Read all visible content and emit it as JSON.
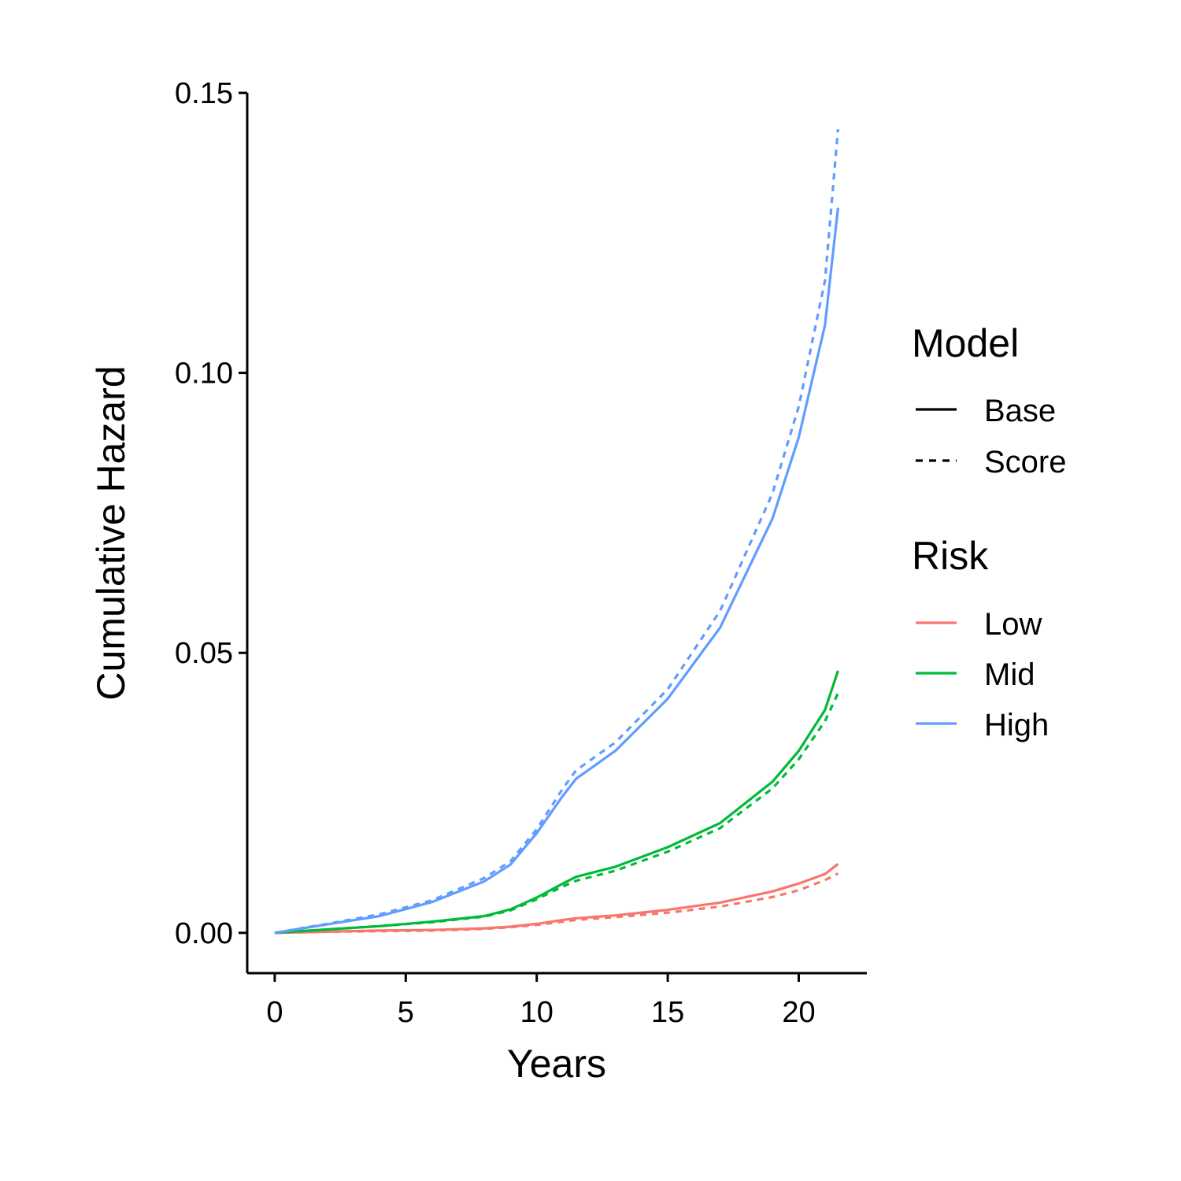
{
  "chart_data": {
    "type": "line",
    "title": "",
    "xlabel": "Years",
    "ylabel": "Cumulative Hazard",
    "xlim": [
      -1.05,
      22.6
    ],
    "ylim": [
      -0.0072,
      0.15
    ],
    "x_ticks": [
      0,
      5,
      10,
      15,
      20
    ],
    "x_tick_labels": [
      "0",
      "5",
      "10",
      "15",
      "20"
    ],
    "y_ticks": [
      0,
      0.05,
      0.1,
      0.15
    ],
    "y_tick_labels": [
      "0.00",
      "0.05",
      "0.10",
      "0.15"
    ],
    "grid": false,
    "legend_position": "right",
    "legends": [
      {
        "title": "Model",
        "entries": [
          {
            "label": "Base",
            "linetype": "solid",
            "color": "#000000"
          },
          {
            "label": "Score",
            "linetype": "dashed",
            "color": "#000000"
          }
        ]
      },
      {
        "title": "Risk",
        "entries": [
          {
            "label": "Low",
            "color": "#F8766D"
          },
          {
            "label": "Mid",
            "color": "#00BA38"
          },
          {
            "label": "High",
            "color": "#619CFF"
          }
        ]
      }
    ],
    "x": [
      0,
      2,
      4,
      6,
      8,
      9,
      10,
      11,
      11.5,
      13,
      15,
      17,
      19,
      20,
      21,
      21.5
    ],
    "series": [
      {
        "risk": "Low",
        "model": "Base",
        "color": "#F8766D",
        "linetype": "solid",
        "values": [
          0,
          0.0002,
          0.0004,
          0.0005,
          0.0008,
          0.0011,
          0.0016,
          0.0023,
          0.0026,
          0.0031,
          0.0041,
          0.0054,
          0.0074,
          0.0088,
          0.0105,
          0.0123
        ]
      },
      {
        "risk": "Low",
        "model": "Score",
        "color": "#F8766D",
        "linetype": "dashed",
        "values": [
          0,
          0.0002,
          0.0003,
          0.0004,
          0.0007,
          0.001,
          0.0014,
          0.002,
          0.0023,
          0.0028,
          0.0036,
          0.0047,
          0.0064,
          0.0076,
          0.0094,
          0.0106
        ]
      },
      {
        "risk": "Mid",
        "model": "Base",
        "color": "#00BA38",
        "linetype": "solid",
        "values": [
          0,
          0.0006,
          0.0012,
          0.002,
          0.003,
          0.0042,
          0.0063,
          0.0088,
          0.01,
          0.0118,
          0.0153,
          0.0196,
          0.027,
          0.0325,
          0.0398,
          0.0468
        ]
      },
      {
        "risk": "Mid",
        "model": "Score",
        "color": "#00BA38",
        "linetype": "dashed",
        "values": [
          0,
          0.0006,
          0.0012,
          0.0019,
          0.0029,
          0.004,
          0.006,
          0.0083,
          0.0093,
          0.0111,
          0.0145,
          0.0187,
          0.0258,
          0.031,
          0.0378,
          0.0428
        ]
      },
      {
        "risk": "High",
        "model": "Base",
        "color": "#619CFF",
        "linetype": "solid",
        "values": [
          0,
          0.0015,
          0.003,
          0.0055,
          0.0092,
          0.0122,
          0.0178,
          0.0245,
          0.0275,
          0.0325,
          0.0418,
          0.0545,
          0.074,
          0.0885,
          0.1085,
          0.1295
        ]
      },
      {
        "risk": "High",
        "model": "Score",
        "color": "#619CFF",
        "linetype": "dashed",
        "values": [
          0,
          0.0016,
          0.0033,
          0.0058,
          0.0098,
          0.0128,
          0.0185,
          0.0258,
          0.029,
          0.034,
          0.0435,
          0.0575,
          0.0785,
          0.094,
          0.1165,
          0.1435
        ]
      }
    ]
  }
}
